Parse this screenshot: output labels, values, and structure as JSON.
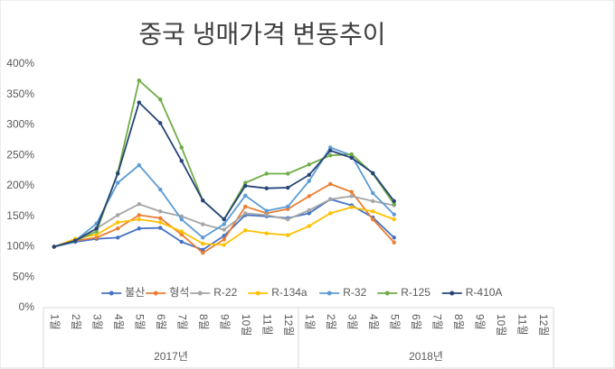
{
  "chart_data": {
    "type": "line",
    "title": "중국 냉매가격 변동추이",
    "categories": [
      "1월",
      "2월",
      "3월",
      "4월",
      "5월",
      "6월",
      "7월",
      "8월",
      "9월",
      "10월",
      "11월",
      "12월",
      "1월",
      "2월",
      "3월",
      "4월",
      "5월",
      "6월",
      "7월",
      "8월",
      "9월",
      "10월",
      "11월",
      "12월"
    ],
    "x_groups": [
      "2017년",
      "2018년"
    ],
    "ylim": [
      0,
      400
    ],
    "yticks": [
      {
        "value": 0,
        "label": "0%"
      },
      {
        "value": 50,
        "label": "50%"
      },
      {
        "value": 100,
        "label": "100%"
      },
      {
        "value": 150,
        "label": "150%"
      },
      {
        "value": 200,
        "label": "200%"
      },
      {
        "value": 250,
        "label": "250%"
      },
      {
        "value": 300,
        "label": "300%"
      },
      {
        "value": 350,
        "label": "350%"
      },
      {
        "value": 400,
        "label": "400%"
      }
    ],
    "grid": false,
    "legend": "bottom",
    "series": [
      {
        "name": "불산",
        "color": "#4472c4",
        "values": [
          100,
          108,
          113,
          115,
          130,
          131,
          108,
          95,
          118,
          152,
          150,
          147,
          155,
          178,
          168,
          148,
          115,
          null,
          null,
          null,
          null,
          null,
          null,
          null
        ]
      },
      {
        "name": "형석",
        "color": "#ed7d31",
        "values": [
          100,
          110,
          115,
          130,
          152,
          147,
          120,
          90,
          112,
          166,
          155,
          162,
          183,
          203,
          190,
          145,
          107,
          null,
          null,
          null,
          null,
          null,
          null,
          null
        ]
      },
      {
        "name": "R-22",
        "color": "#a5a5a5",
        "values": [
          100,
          110,
          130,
          152,
          170,
          158,
          150,
          137,
          128,
          155,
          152,
          145,
          160,
          178,
          183,
          175,
          168,
          null,
          null,
          null,
          null,
          null,
          null,
          null
        ]
      },
      {
        "name": "R-134a",
        "color": "#ffc000",
        "values": [
          100,
          113,
          120,
          140,
          145,
          140,
          125,
          105,
          103,
          127,
          122,
          119,
          134,
          155,
          165,
          158,
          145,
          null,
          null,
          null,
          null,
          null,
          null,
          null
        ]
      },
      {
        "name": "R-32",
        "color": "#5b9bd5",
        "values": [
          100,
          110,
          138,
          205,
          234,
          194,
          145,
          115,
          137,
          184,
          159,
          166,
          208,
          263,
          250,
          188,
          153,
          null,
          null,
          null,
          null,
          null,
          null,
          null
        ]
      },
      {
        "name": "R-125",
        "color": "#70ad47",
        "values": [
          100,
          110,
          125,
          222,
          373,
          342,
          263,
          176,
          145,
          205,
          220,
          220,
          235,
          250,
          252,
          220,
          170,
          null,
          null,
          null,
          null,
          null,
          null,
          null
        ]
      },
      {
        "name": "R-410A",
        "color": "#264478",
        "values": [
          100,
          110,
          130,
          220,
          337,
          303,
          241,
          176,
          145,
          200,
          196,
          197,
          218,
          258,
          246,
          221,
          175,
          null,
          null,
          null,
          null,
          null,
          null,
          null
        ]
      }
    ]
  }
}
